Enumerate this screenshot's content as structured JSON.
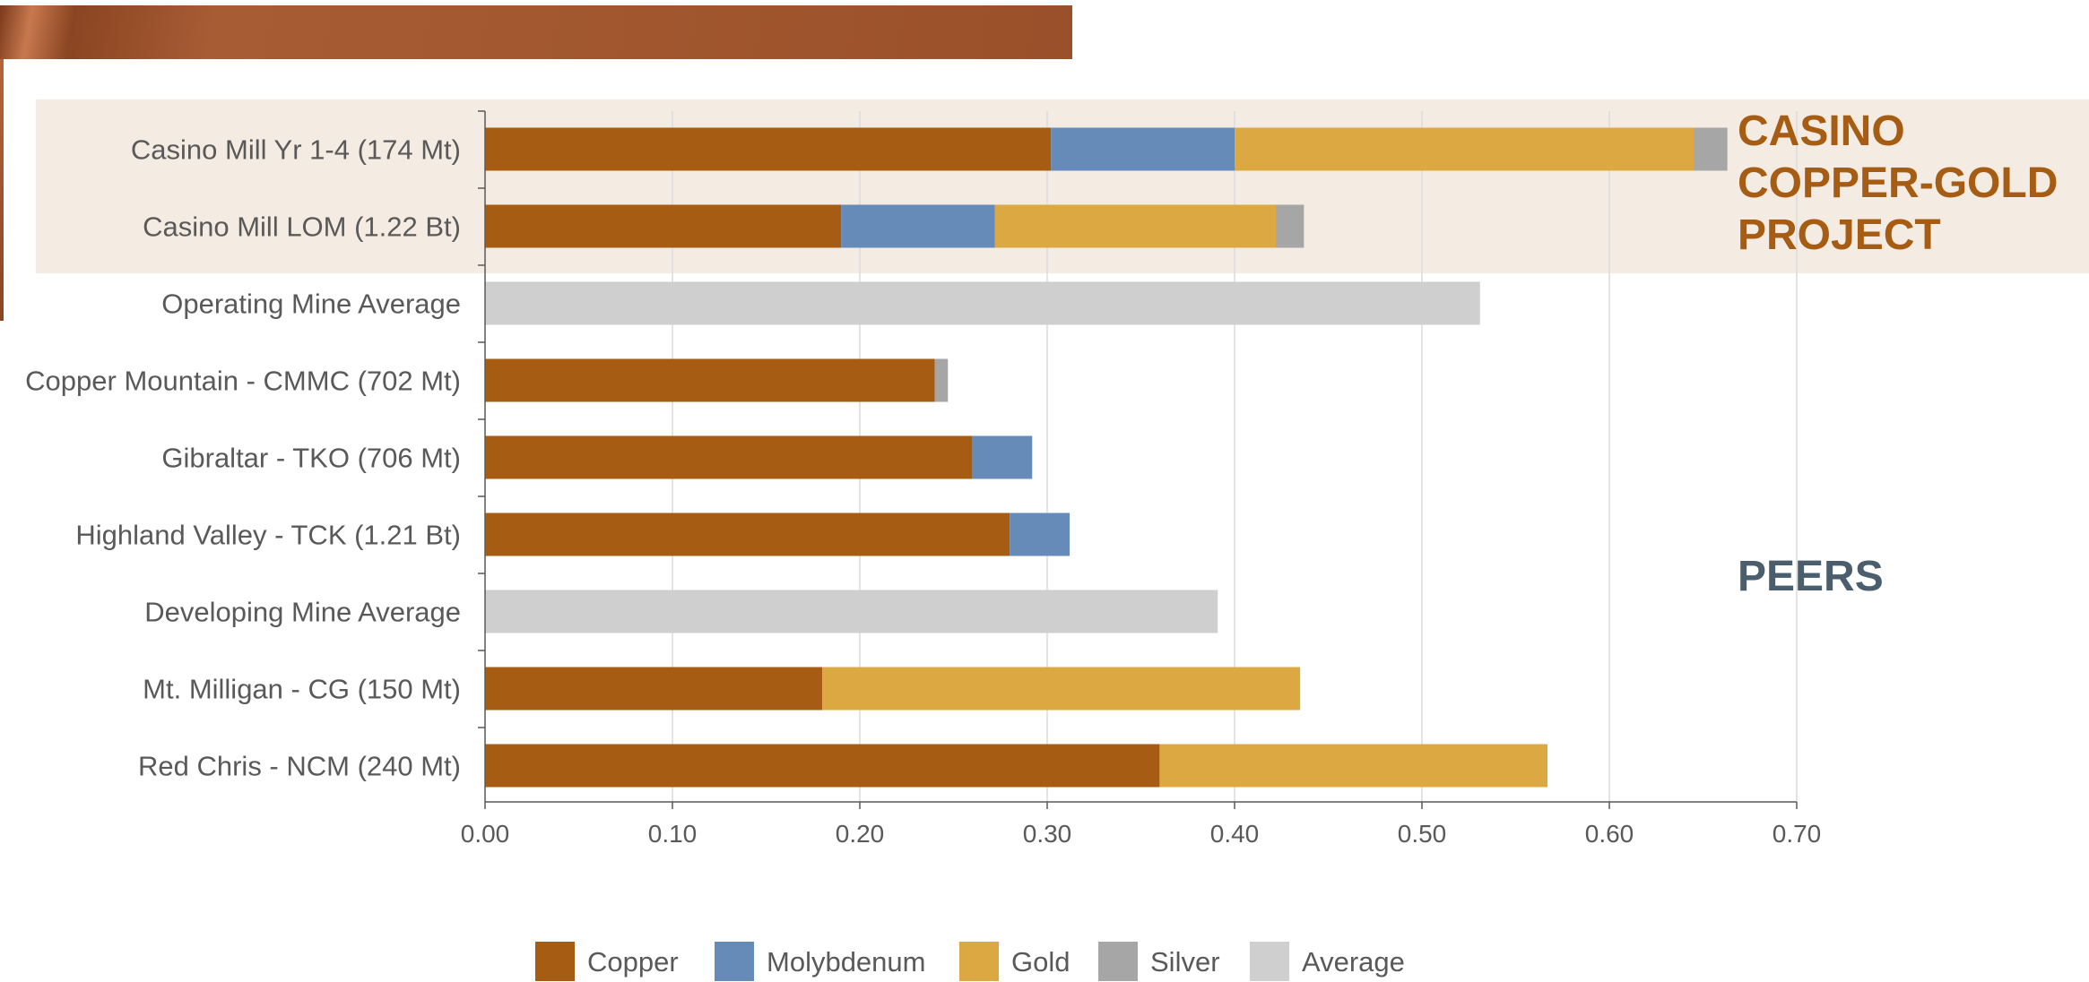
{
  "groups": {
    "casino": "CASINO COPPER-GOLD PROJECT",
    "peers": "PEERS"
  },
  "chart_data": {
    "type": "bar",
    "orientation": "horizontal",
    "stacked": true,
    "categories": [
      "Casino Mill Yr 1-4 (174 Mt)",
      "Casino Mill LOM (1.22 Bt)",
      "Operating Mine Average",
      "Copper Mountain - CMMC (702 Mt)",
      "Gibraltar - TKO (706 Mt)",
      "Highland Valley - TCK (1.21 Bt)",
      "Developing Mine Average",
      "Mt. Milligan - CG (150 Mt)",
      "Red Chris - NCM (240 Mt)"
    ],
    "series": [
      {
        "name": "Copper",
        "color": "#a65c13",
        "values": [
          0.302,
          0.19,
          0,
          0.24,
          0.26,
          0.28,
          0,
          0.18,
          0.36
        ]
      },
      {
        "name": "Molybdenum",
        "color": "#668bb8",
        "values": [
          0.098,
          0.082,
          0,
          0,
          0.032,
          0.032,
          0,
          0,
          0
        ]
      },
      {
        "name": "Gold",
        "color": "#dba842",
        "values": [
          0.245,
          0.15,
          0,
          0,
          0,
          0,
          0,
          0.255,
          0.207
        ]
      },
      {
        "name": "Silver",
        "color": "#a6a6a6",
        "values": [
          0.018,
          0.015,
          0,
          0.007,
          0,
          0,
          0,
          0,
          0
        ]
      },
      {
        "name": "Average",
        "color": "#d0cfd0",
        "values": [
          0,
          0,
          0.531,
          0,
          0,
          0,
          0.391,
          0,
          0
        ]
      }
    ],
    "xticks": [
      "0.00",
      "0.10",
      "0.20",
      "0.30",
      "0.40",
      "0.50",
      "0.60",
      "0.70"
    ],
    "xlim": [
      0,
      0.7
    ],
    "grid": true,
    "legend": "bottom",
    "title": "",
    "xlabel": "",
    "ylabel": ""
  }
}
